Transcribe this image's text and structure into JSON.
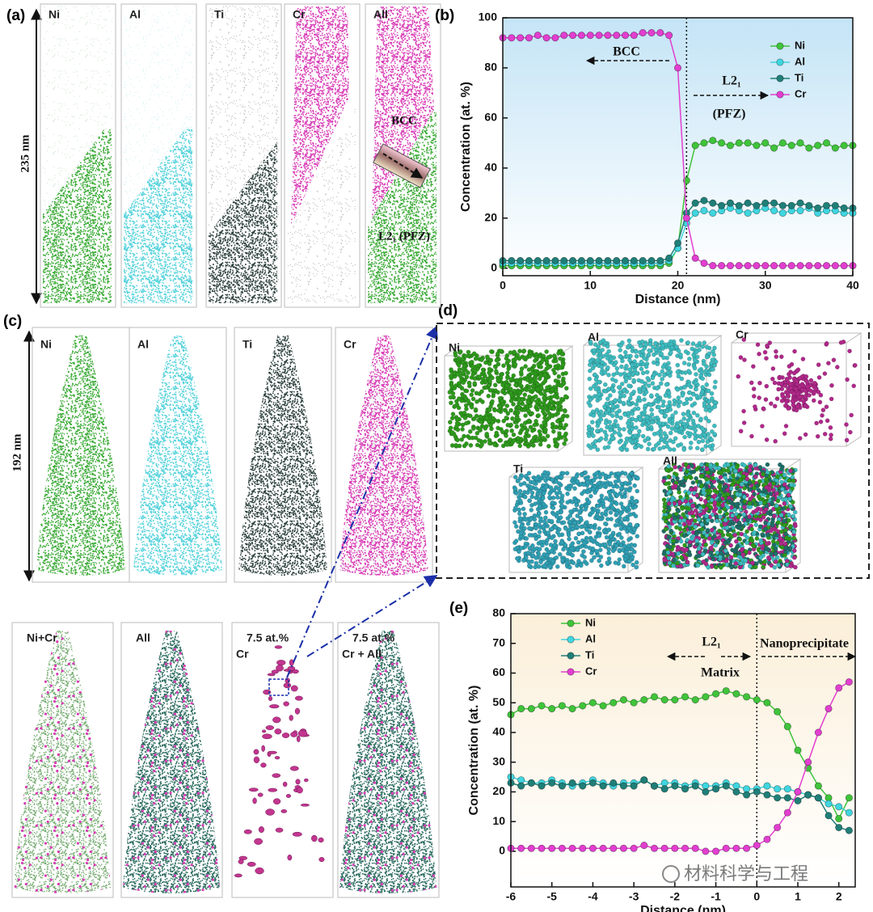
{
  "figure": {
    "panel_a": {
      "label": "(a)",
      "columns": [
        "Ni",
        "Al",
        "Ti",
        "Cr",
        "All"
      ],
      "scale": "235 nm",
      "phase_top": "BCC",
      "phase_bottom": "L2₁ (PFZ)"
    },
    "panel_b": {
      "label": "(b)"
    },
    "panel_c": {
      "label": "(c)",
      "top_columns": [
        "Ni",
        "Al",
        "Ti",
        "Cr"
      ],
      "scale": "192 nm",
      "bottom_columns": [
        [
          "Ni+Cr"
        ],
        [
          "All"
        ],
        [
          "7.5 at.%",
          "Cr"
        ],
        [
          "7.5 at.%",
          "Cr + All"
        ]
      ]
    },
    "panel_d": {
      "label": "(d)",
      "cubes": [
        "Ni",
        "Al",
        "Cr",
        "Ti",
        "All"
      ]
    },
    "panel_e": {
      "label": "(e)"
    },
    "watermark": "材料科学与工程"
  },
  "chart_data": [
    {
      "type": "line",
      "x_label": "Distance (nm)",
      "y_label": "Concentration (at. %)",
      "x": [
        0,
        1,
        2,
        3,
        4,
        5,
        6,
        7,
        8,
        9,
        10,
        11,
        12,
        13,
        14,
        15,
        16,
        17,
        18,
        19,
        20,
        21,
        22,
        23,
        24,
        25,
        26,
        27,
        28,
        29,
        30,
        31,
        32,
        33,
        34,
        35,
        36,
        37,
        38,
        39,
        40
      ],
      "series": [
        {
          "name": "Ni",
          "color": "#3fc43a",
          "values": [
            1,
            1,
            1,
            1,
            1,
            1,
            1,
            1,
            1,
            1,
            1,
            1,
            1,
            1,
            1,
            1,
            1,
            1,
            1,
            2,
            8,
            35,
            49,
            50,
            51,
            50,
            49,
            50,
            50,
            49,
            50,
            48,
            50,
            49,
            50,
            48,
            49,
            50,
            48,
            49,
            49
          ]
        },
        {
          "name": "Al",
          "color": "#3fd6e0",
          "values": [
            2,
            2,
            2,
            2,
            2,
            2,
            2,
            2,
            2,
            2,
            2,
            2,
            2,
            2,
            2,
            2,
            2,
            2,
            2,
            3,
            8,
            18,
            22,
            23,
            22,
            23,
            24,
            23,
            22,
            23,
            24,
            23,
            22,
            23,
            23,
            24,
            22,
            23,
            23,
            22,
            22
          ]
        },
        {
          "name": "Ti",
          "color": "#1f7f78",
          "values": [
            3,
            3,
            3,
            3,
            3,
            3,
            3,
            3,
            3,
            3,
            3,
            3,
            3,
            3,
            3,
            3,
            3,
            3,
            3,
            4,
            10,
            22,
            26,
            27,
            26,
            25,
            26,
            25,
            26,
            25,
            26,
            26,
            25,
            25,
            26,
            25,
            24,
            25,
            25,
            24,
            24
          ]
        },
        {
          "name": "Cr",
          "color": "#e23ed0",
          "values": [
            92,
            92,
            92,
            92,
            93,
            92,
            92,
            93,
            93,
            93,
            93,
            93,
            93,
            93,
            93,
            93,
            94,
            94,
            94,
            93,
            80,
            20,
            4,
            2,
            1,
            1,
            1,
            1,
            1,
            1,
            1,
            1,
            1,
            1,
            1,
            1,
            1,
            1,
            1,
            1,
            1
          ]
        }
      ],
      "xlim": [
        0,
        40
      ],
      "xticks": [
        0,
        10,
        20,
        30,
        40
      ],
      "ylim": [
        -3,
        100
      ],
      "yticks": [
        0,
        20,
        40,
        60,
        80,
        100
      ],
      "divider_x": 21,
      "background": "#c4e4f6",
      "legend": "upper right",
      "annotations": [
        "BCC",
        "L2₁",
        "(PFZ)"
      ]
    },
    {
      "type": "line",
      "x_label": "Distance (nm)",
      "y_label": "Concentration (at. %)",
      "x": [
        -6,
        -5.75,
        -5.5,
        -5.25,
        -5,
        -4.75,
        -4.5,
        -4.25,
        -4,
        -3.75,
        -3.5,
        -3.25,
        -3,
        -2.75,
        -2.5,
        -2.25,
        -2,
        -1.75,
        -1.5,
        -1.25,
        -1,
        -0.75,
        -0.5,
        -0.25,
        0,
        0.25,
        0.5,
        0.75,
        1,
        1.25,
        1.5,
        1.75,
        2,
        2.25
      ],
      "series": [
        {
          "name": "Ni",
          "color": "#3fc43a",
          "values": [
            46,
            48,
            48,
            49,
            48,
            49,
            48,
            49,
            50,
            49,
            50,
            51,
            50,
            51,
            52,
            51,
            51,
            52,
            51,
            52,
            53,
            54,
            53,
            52,
            51,
            50,
            47,
            42,
            34,
            28,
            22,
            18,
            11,
            18
          ]
        },
        {
          "name": "Al",
          "color": "#3fd6e0",
          "values": [
            25,
            24,
            23,
            23,
            24,
            23,
            22,
            23,
            24,
            23,
            22,
            23,
            23,
            24,
            22,
            23,
            23,
            22,
            23,
            22,
            22,
            23,
            22,
            21,
            21,
            22,
            21,
            21,
            20,
            19,
            18,
            16,
            15,
            13
          ]
        },
        {
          "name": "Ti",
          "color": "#1f7f78",
          "values": [
            23,
            22,
            23,
            22,
            23,
            22,
            23,
            22,
            23,
            22,
            23,
            22,
            22,
            24,
            22,
            21,
            22,
            21,
            22,
            20,
            21,
            22,
            20,
            19,
            20,
            19,
            18,
            18,
            17,
            19,
            18,
            12,
            8,
            7
          ]
        },
        {
          "name": "Cr",
          "color": "#e23ed0",
          "values": [
            1,
            1,
            1,
            1,
            1,
            1,
            1,
            1,
            1,
            1,
            1,
            1,
            1,
            2,
            1,
            1,
            1,
            1,
            1,
            0,
            0,
            1,
            1,
            1,
            2,
            4,
            8,
            13,
            20,
            30,
            40,
            48,
            55,
            57
          ]
        }
      ],
      "xlim": [
        -6,
        2.4
      ],
      "xticks": [
        -6,
        -5,
        -4,
        -3,
        -2,
        -1,
        0,
        1,
        2
      ],
      "ylim": [
        -12,
        80
      ],
      "yticks": [
        0,
        10,
        20,
        30,
        40,
        50,
        60,
        70,
        80
      ],
      "divider_x": 0,
      "background": "#fbefd9",
      "legend": "upper left",
      "annotations": [
        "L2₁",
        "Matrix",
        "Nanoprecipitate"
      ]
    }
  ]
}
